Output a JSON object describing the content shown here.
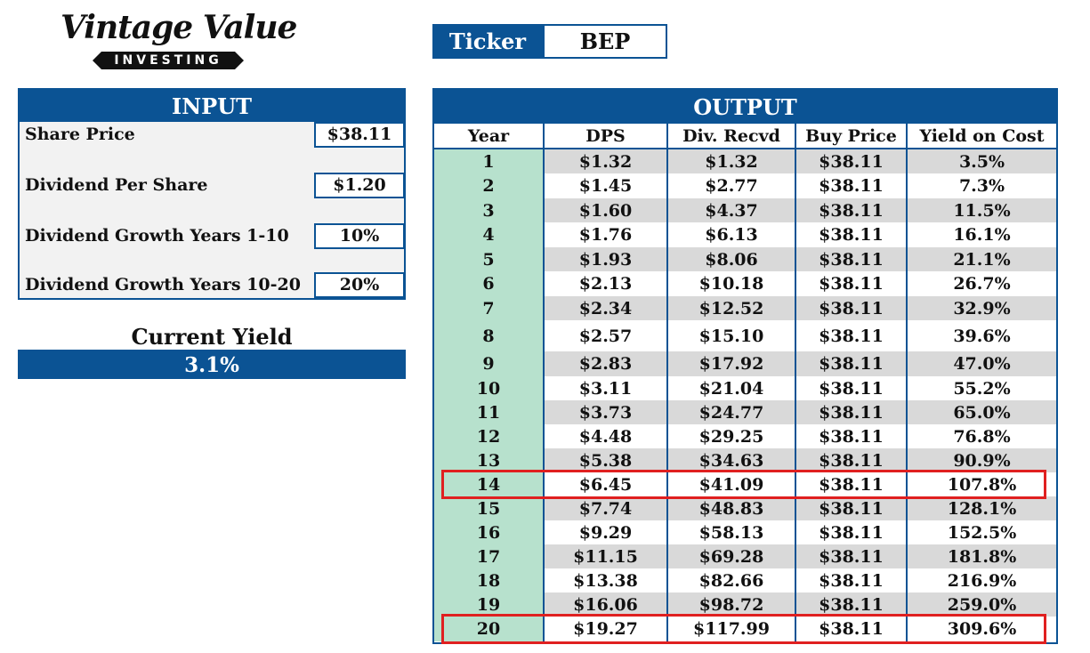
{
  "logo": {
    "script": "Vintage Value",
    "bar": "INVESTING"
  },
  "ticker": {
    "label": "Ticker",
    "value": "BEP"
  },
  "input": {
    "title": "INPUT",
    "rows": [
      {
        "label": "Share Price",
        "value": "$38.11"
      },
      {
        "label": "Dividend Per Share",
        "value": "$1.20"
      },
      {
        "label": "Dividend Growth Years 1-10",
        "value": "10%"
      },
      {
        "label": "Dividend Growth Years 10-20",
        "value": "20%"
      }
    ]
  },
  "current_yield": {
    "label": "Current Yield",
    "value": "3.1%"
  },
  "output": {
    "title": "OUTPUT",
    "columns": [
      "Year",
      "DPS",
      "Div. Recvd",
      "Buy Price",
      "Yield on Cost"
    ],
    "rows": [
      [
        "1",
        "$1.32",
        "$1.32",
        "$38.11",
        "3.5%"
      ],
      [
        "2",
        "$1.45",
        "$2.77",
        "$38.11",
        "7.3%"
      ],
      [
        "3",
        "$1.60",
        "$4.37",
        "$38.11",
        "11.5%"
      ],
      [
        "4",
        "$1.76",
        "$6.13",
        "$38.11",
        "16.1%"
      ],
      [
        "5",
        "$1.93",
        "$8.06",
        "$38.11",
        "21.1%"
      ],
      [
        "6",
        "$2.13",
        "$10.18",
        "$38.11",
        "26.7%"
      ],
      [
        "7",
        "$2.34",
        "$12.52",
        "$38.11",
        "32.9%"
      ],
      [
        "8",
        "$2.57",
        "$15.10",
        "$38.11",
        "39.6%"
      ],
      [
        "9",
        "$2.83",
        "$17.92",
        "$38.11",
        "47.0%"
      ],
      [
        "10",
        "$3.11",
        "$21.04",
        "$38.11",
        "55.2%"
      ],
      [
        "11",
        "$3.73",
        "$24.77",
        "$38.11",
        "65.0%"
      ],
      [
        "12",
        "$4.48",
        "$29.25",
        "$38.11",
        "76.8%"
      ],
      [
        "13",
        "$5.38",
        "$34.63",
        "$38.11",
        "90.9%"
      ],
      [
        "14",
        "$6.45",
        "$41.09",
        "$38.11",
        "107.8%"
      ],
      [
        "15",
        "$7.74",
        "$48.83",
        "$38.11",
        "128.1%"
      ],
      [
        "16",
        "$9.29",
        "$58.13",
        "$38.11",
        "152.5%"
      ],
      [
        "17",
        "$11.15",
        "$69.28",
        "$38.11",
        "181.8%"
      ],
      [
        "18",
        "$13.38",
        "$82.66",
        "$38.11",
        "216.9%"
      ],
      [
        "19",
        "$16.06",
        "$98.72",
        "$38.11",
        "259.0%"
      ],
      [
        "20",
        "$19.27",
        "$117.99",
        "$38.11",
        "309.6%"
      ]
    ],
    "highlighted_years": [
      "14",
      "20"
    ]
  },
  "colors": {
    "header_blue": "#0b5394",
    "year_green": "#b7e1cd",
    "row_shade": "#d9d9d9",
    "highlight_red": "#e02020"
  }
}
